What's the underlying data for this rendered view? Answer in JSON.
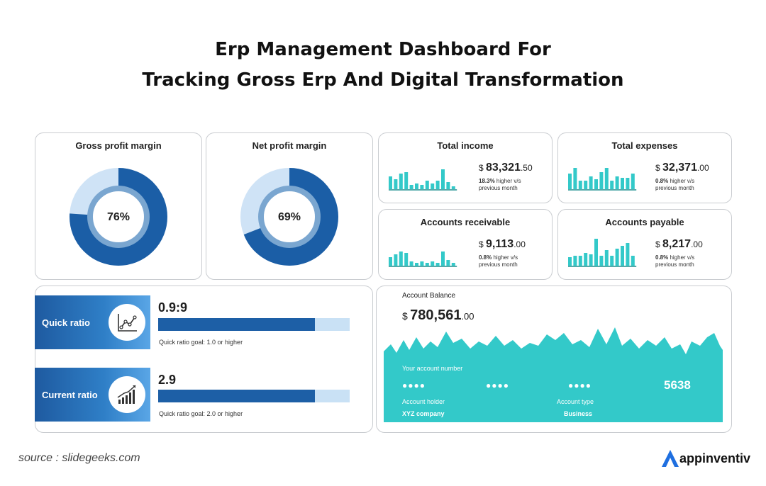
{
  "header": {
    "title_line1": "Erp Management Dashboard For",
    "title_line2": "Tracking Gross Erp And Digital Transformation"
  },
  "gross_profit": {
    "title": "Gross profit margin",
    "value_label": "76%",
    "value": 0.76
  },
  "net_profit": {
    "title": "Net profit margin",
    "value_label": "69%",
    "value": 0.69
  },
  "total_income": {
    "title": "Total income",
    "currency": "$",
    "amount": "83,321",
    "cents": ".50",
    "pct": "18.3%",
    "note_rest": " higher v/s",
    "note2": "previous month",
    "bars": [
      18,
      14,
      22,
      24,
      6,
      8,
      6,
      12,
      8,
      12,
      28,
      10,
      4
    ]
  },
  "total_expenses": {
    "title": "Total expenses",
    "currency": "$",
    "amount": "32,371",
    "cents": ".00",
    "pct": "0.8%",
    "note_rest": " higher v/s",
    "note2": "previous month",
    "bars": [
      22,
      30,
      12,
      12,
      18,
      14,
      24,
      30,
      12,
      18,
      16,
      16,
      22
    ]
  },
  "accounts_receivable": {
    "title": "Accounts receivable",
    "currency": "$",
    "amount": "9,113",
    "cents": ".00",
    "pct": "0.8%",
    "note_rest": " higher v/s",
    "note2": "previous month",
    "bars": [
      12,
      16,
      20,
      18,
      6,
      4,
      6,
      4,
      6,
      4,
      20,
      8,
      4
    ]
  },
  "accounts_payable": {
    "title": "Accounts payable",
    "currency": "$",
    "amount": "8,217",
    "cents": ".00",
    "pct": "0.8%",
    "note_rest": " higher v/s",
    "note2": "previous month",
    "bars": [
      12,
      14,
      14,
      18,
      16,
      38,
      14,
      22,
      14,
      24,
      28,
      32,
      14
    ]
  },
  "quick_ratio": {
    "label": "Quick ratio",
    "value": "0.9:9",
    "fill": 0.82,
    "goal": "Quick ratio goal: 1.0 or higher",
    "icon": "line-chart-icon"
  },
  "current_ratio": {
    "label": "Current ratio",
    "value": "2.9",
    "fill": 0.82,
    "goal": "Quick ratio goal: 2.0 or higher",
    "icon": "bar-chart-icon"
  },
  "account_balance": {
    "title": "Account Balance",
    "currency": "$",
    "amount": "780,561",
    "cents": ".00",
    "account_number_label": "Your account number",
    "dots1": "●●●●",
    "dots2": "●●●●",
    "dots3": "●●●●",
    "last4": "5638",
    "holder_label": "Account holder",
    "holder": "XYZ company",
    "type_label": "Account type",
    "type": "Business"
  },
  "footer": {
    "source": "source : slidegeeks.com",
    "brand": "appinventiv"
  },
  "colors": {
    "dark_blue": "#1d5fa6",
    "light_blue": "#c9e1f5",
    "teal": "#33c9c9"
  }
}
